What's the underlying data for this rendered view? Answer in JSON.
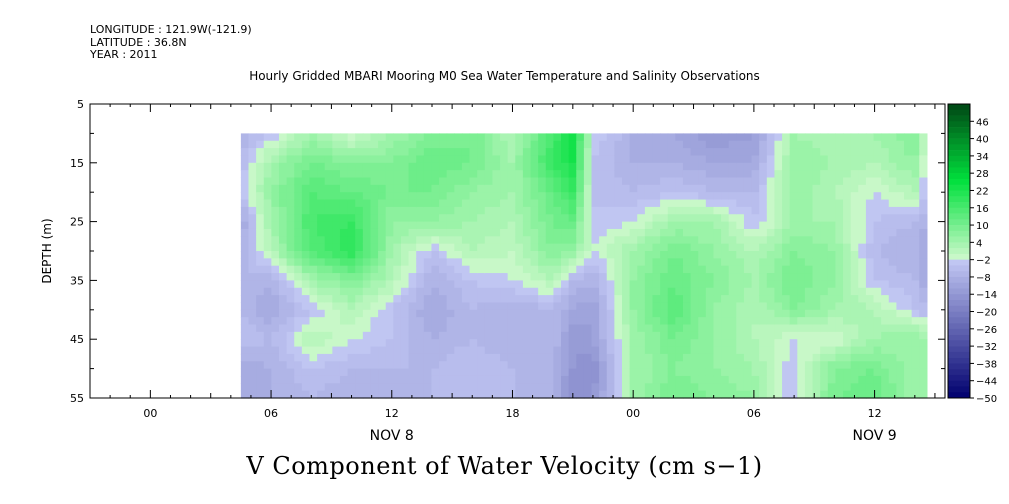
{
  "header": {
    "longitude": "LONGITUDE : 121.9W(-121.9)",
    "latitude": "LATITUDE : 36.8N",
    "year": "YEAR : 2011"
  },
  "title": "Hourly Gridded MBARI Mooring M0 Sea Water Temperature and Salinity Observations",
  "variable_title": "V Component of Water Velocity (cm s−1)",
  "chart_data": {
    "type": "heatmap",
    "title": "Hourly Gridded MBARI Mooring M0 Sea Water Temperature and Salinity Observations",
    "variable": "V Component of Water Velocity (cm s−1)",
    "ylabel": "DEPTH (m)",
    "ylim": [
      5,
      55
    ],
    "y_reversed": true,
    "y_ticks": [
      5,
      15,
      25,
      35,
      45,
      55
    ],
    "x_tick_labels": [
      "00",
      "06",
      "12",
      "18",
      "00",
      "06",
      "12"
    ],
    "x_day_labels": [
      "NOV  8",
      "NOV  9"
    ],
    "x_hours": [
      -24,
      -18,
      -12,
      -6,
      0,
      6,
      12
    ],
    "xlim_hours": [
      -27,
      15.5
    ],
    "data_start_hour": -19.5,
    "data_depth_range": [
      10,
      55
    ],
    "depths": [
      10,
      15,
      20,
      25,
      30,
      35,
      40,
      45,
      50,
      55
    ],
    "hours": [
      -19.5,
      -18,
      -16,
      -14,
      -12,
      -10,
      -8,
      -6,
      -4,
      -3,
      -2,
      0,
      2,
      4,
      6,
      8,
      10,
      12,
      14,
      15
    ],
    "values": [
      [
        -8,
        -4,
        4,
        -2,
        4,
        8,
        10,
        2,
        16,
        24,
        -2,
        -8,
        -10,
        -14,
        -12,
        4,
        2,
        4,
        8,
        -8
      ],
      [
        -6,
        4,
        10,
        8,
        8,
        12,
        10,
        4,
        18,
        22,
        -4,
        -8,
        -8,
        -10,
        -10,
        6,
        4,
        2,
        6,
        -10
      ],
      [
        -4,
        6,
        14,
        12,
        10,
        10,
        6,
        4,
        12,
        18,
        -4,
        -6,
        -4,
        -6,
        -6,
        6,
        2,
        -2,
        2,
        -10
      ],
      [
        -10,
        4,
        16,
        18,
        6,
        6,
        4,
        2,
        10,
        12,
        -4,
        -2,
        4,
        4,
        -4,
        4,
        4,
        -4,
        -6,
        -10
      ],
      [
        -8,
        2,
        14,
        20,
        4,
        -4,
        2,
        0,
        8,
        6,
        -2,
        4,
        10,
        6,
        2,
        8,
        6,
        -6,
        -8,
        -10
      ],
      [
        -6,
        -8,
        4,
        8,
        2,
        -8,
        -4,
        -2,
        2,
        -6,
        -8,
        6,
        12,
        8,
        4,
        10,
        6,
        -4,
        -6,
        -12
      ],
      [
        -6,
        -10,
        -4,
        2,
        -4,
        -10,
        -6,
        -8,
        -6,
        -10,
        -12,
        6,
        14,
        6,
        2,
        8,
        4,
        2,
        -4,
        -8
      ],
      [
        -4,
        -6,
        2,
        -2,
        -4,
        -8,
        -6,
        -8,
        -6,
        -14,
        -12,
        4,
        10,
        6,
        2,
        -2,
        -2,
        4,
        6,
        2
      ],
      [
        -10,
        -8,
        -4,
        -6,
        -6,
        -6,
        -4,
        -6,
        -8,
        -14,
        -16,
        4,
        8,
        6,
        4,
        -4,
        8,
        10,
        4,
        4
      ],
      [
        -8,
        -8,
        -6,
        -8,
        -8,
        -6,
        -6,
        -6,
        -8,
        -16,
        -14,
        4,
        10,
        8,
        6,
        -4,
        10,
        12,
        4,
        6
      ]
    ],
    "colorbar_labels": [
      "46",
      "40",
      "34",
      "28",
      "22",
      "16",
      "10",
      "4",
      "−2",
      "−8",
      "−14",
      "−20",
      "−26",
      "−32",
      "−38",
      "−44",
      "−50"
    ],
    "colorbar_range": [
      -50,
      52
    ],
    "colorbar_step": 2
  }
}
